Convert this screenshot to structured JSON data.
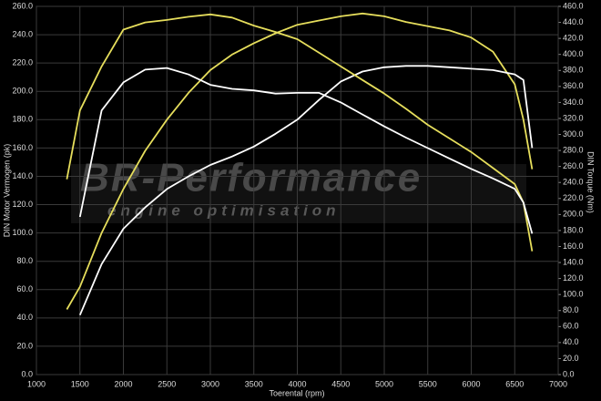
{
  "chart_data": {
    "type": "line",
    "xlabel": "Toerental (rpm)",
    "ylabel": "DIN Motor Vermogen (pk)",
    "y2label": "DIN Torque (Nm)",
    "watermark": "BR-Performance",
    "watermark_subtitle": "engine optimisation",
    "grid": true,
    "x": [
      1350,
      1500,
      1750,
      2000,
      2250,
      2500,
      2750,
      3000,
      3250,
      3500,
      3750,
      4000,
      4250,
      4500,
      4750,
      5000,
      5250,
      5500,
      5750,
      6000,
      6250,
      6500,
      6600,
      6700
    ],
    "series": [
      {
        "color": "#e6de5c",
        "values": [
          46,
          62,
          100,
          131,
          158,
          180,
          199,
          215,
          226,
          234,
          241,
          247,
          250,
          253,
          255,
          253,
          249,
          246,
          243,
          238,
          228,
          205,
          180,
          145
        ]
      },
      {
        "color": "#ffffff",
        "values": [
          null,
          42,
          78,
          103,
          118,
          131,
          140,
          148,
          154,
          161,
          170,
          180,
          194,
          207,
          214,
          217,
          218,
          218,
          217,
          216,
          215,
          212,
          208,
          160
        ]
      },
      {
        "color": "#e6de5c",
        "axis": "y2",
        "values": [
          244,
          330,
          385,
          431,
          440,
          443,
          447,
          450,
          446,
          436,
          428,
          419,
          402,
          385,
          368,
          351,
          332,
          312,
          295,
          278,
          258,
          238,
          215,
          154
        ]
      },
      {
        "color": "#ffffff",
        "axis": "y2",
        "values": [
          null,
          197,
          330,
          365,
          381,
          383,
          375,
          362,
          357,
          355,
          351,
          352,
          352,
          340,
          325,
          310,
          296,
          283,
          270,
          257,
          245,
          232,
          215,
          176
        ]
      }
    ],
    "xlim": [
      1000,
      7000
    ],
    "xticks": [
      1000,
      1500,
      2000,
      2500,
      3000,
      3500,
      4000,
      4500,
      5000,
      5500,
      6000,
      6500,
      7000
    ],
    "ylim": [
      0,
      260
    ],
    "yticks": [
      {
        "value": 0,
        "label": "0.0"
      },
      {
        "value": 20,
        "label": "20.0"
      },
      {
        "value": 40,
        "label": "40.0"
      },
      {
        "value": 60,
        "label": "60.0"
      },
      {
        "value": 80,
        "label": "80.0"
      },
      {
        "value": 100,
        "label": "100.0"
      },
      {
        "value": 120,
        "label": "120.0"
      },
      {
        "value": 140,
        "label": "140.0"
      },
      {
        "value": 160,
        "label": "160.0"
      },
      {
        "value": 180,
        "label": "180.0"
      },
      {
        "value": 200,
        "label": "200.0"
      },
      {
        "value": 220,
        "label": "220.0"
      },
      {
        "value": 240,
        "label": "240.0"
      },
      {
        "value": 260,
        "label": "260.0"
      }
    ],
    "y2lim": [
      0,
      460
    ],
    "y2ticks": [
      {
        "value": 0,
        "label": "0.0"
      },
      {
        "value": 20,
        "label": "20.0"
      },
      {
        "value": 40,
        "label": "40.0"
      },
      {
        "value": 60,
        "label": "60.0"
      },
      {
        "value": 80,
        "label": "80.0"
      },
      {
        "value": 100,
        "label": "100.0"
      },
      {
        "value": 120,
        "label": "120.0"
      },
      {
        "value": 140,
        "label": "140.0"
      },
      {
        "value": 160,
        "label": "160.0"
      },
      {
        "value": 180,
        "label": "180.0"
      },
      {
        "value": 200,
        "label": "200.0"
      },
      {
        "value": 220,
        "label": "220.0"
      },
      {
        "value": 240,
        "label": "240.0"
      },
      {
        "value": 260,
        "label": "260.0"
      },
      {
        "value": 280,
        "label": "280.0"
      },
      {
        "value": 300,
        "label": "300.0"
      },
      {
        "value": 320,
        "label": "320.0"
      },
      {
        "value": 340,
        "label": "340.0"
      },
      {
        "value": 360,
        "label": "360.0"
      },
      {
        "value": 380,
        "label": "380.0"
      },
      {
        "value": 400,
        "label": "400.0"
      },
      {
        "value": 420,
        "label": "420.0"
      },
      {
        "value": 440,
        "label": "440.0"
      },
      {
        "value": 460,
        "label": "460.0"
      }
    ]
  }
}
